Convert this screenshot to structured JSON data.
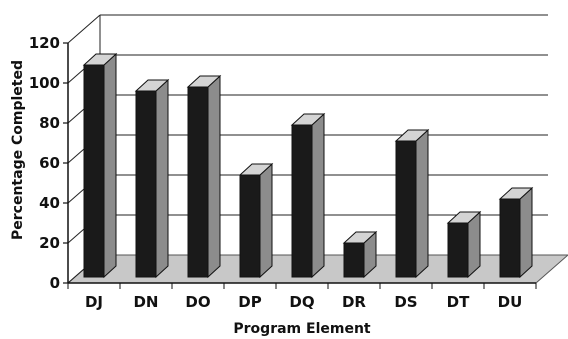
{
  "chart_data": {
    "type": "bar",
    "xlabel": "Program Element",
    "ylabel": "Percentage Completed",
    "ylim": [
      0,
      120
    ],
    "yticks": [
      0,
      20,
      40,
      60,
      80,
      100,
      120
    ],
    "categories": [
      "DJ",
      "DN",
      "DO",
      "DP",
      "DQ",
      "DR",
      "DS",
      "DT",
      "DU"
    ],
    "values": [
      106,
      93,
      95,
      51,
      76,
      17,
      68,
      27,
      39
    ],
    "grid": true,
    "style": "3d-bar",
    "colors": {
      "bar_front": "#1a1a1a",
      "bar_side": "#8c8c8c",
      "bar_top": "#d4d4d4",
      "floor": "#c8c8c8",
      "grid": "#222222"
    }
  }
}
